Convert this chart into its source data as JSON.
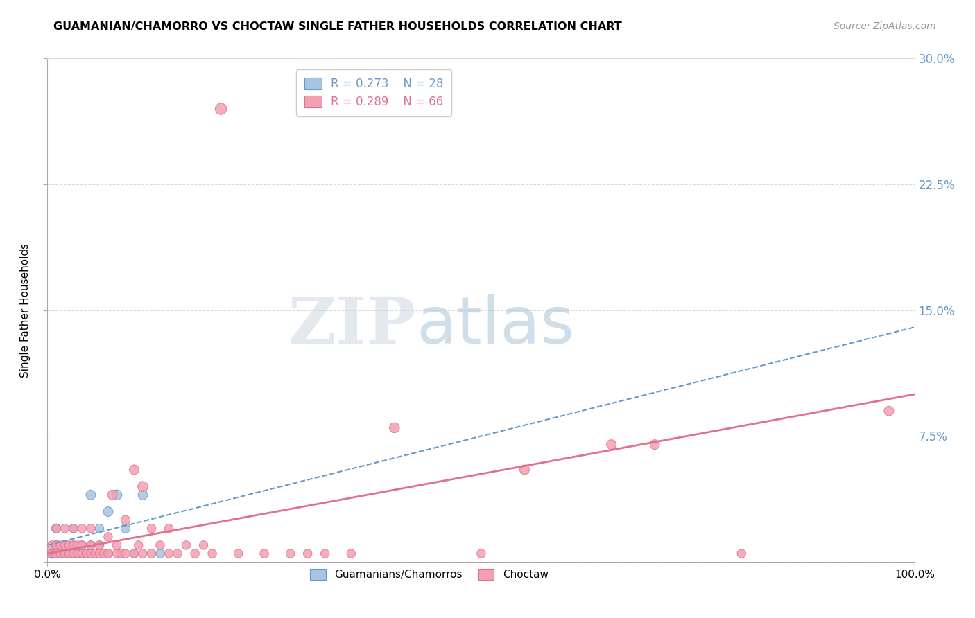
{
  "title": "GUAMANIAN/CHAMORRO VS CHOCTAW SINGLE FATHER HOUSEHOLDS CORRELATION CHART",
  "source": "Source: ZipAtlas.com",
  "ylabel": "Single Father Households",
  "xlim": [
    0,
    1.0
  ],
  "ylim": [
    0,
    0.3
  ],
  "yticks": [
    0.0,
    0.075,
    0.15,
    0.225,
    0.3
  ],
  "ytick_labels": [
    "",
    "7.5%",
    "15.0%",
    "22.5%",
    "30.0%"
  ],
  "xtick_labels": [
    "0.0%",
    "100.0%"
  ],
  "legend_r1": "R = 0.273",
  "legend_n1": "N = 28",
  "legend_r2": "R = 0.289",
  "legend_n2": "N = 66",
  "color_blue": "#a8c4e0",
  "color_pink": "#f4a0b0",
  "trendline_blue": "#6699cc",
  "trendline_pink": "#e07090",
  "background": "#ffffff",
  "blue_points_x": [
    0.005,
    0.008,
    0.01,
    0.01,
    0.01,
    0.015,
    0.02,
    0.02,
    0.02,
    0.025,
    0.03,
    0.03,
    0.03,
    0.035,
    0.04,
    0.04,
    0.045,
    0.05,
    0.05,
    0.06,
    0.06,
    0.07,
    0.07,
    0.08,
    0.09,
    0.1,
    0.11,
    0.13
  ],
  "blue_points_y": [
    0.005,
    0.005,
    0.005,
    0.01,
    0.02,
    0.005,
    0.005,
    0.01,
    0.005,
    0.005,
    0.005,
    0.01,
    0.02,
    0.005,
    0.005,
    0.01,
    0.005,
    0.01,
    0.04,
    0.01,
    0.02,
    0.005,
    0.03,
    0.04,
    0.02,
    0.005,
    0.04,
    0.005
  ],
  "blue_sizes": [
    100,
    80,
    90,
    90,
    90,
    80,
    80,
    80,
    80,
    80,
    80,
    80,
    80,
    80,
    80,
    80,
    80,
    80,
    100,
    80,
    80,
    80,
    100,
    110,
    90,
    80,
    100,
    80
  ],
  "pink_points_x": [
    0.005,
    0.005,
    0.008,
    0.01,
    0.01,
    0.01,
    0.015,
    0.015,
    0.02,
    0.02,
    0.02,
    0.025,
    0.025,
    0.03,
    0.03,
    0.03,
    0.035,
    0.035,
    0.04,
    0.04,
    0.04,
    0.045,
    0.05,
    0.05,
    0.05,
    0.055,
    0.06,
    0.06,
    0.065,
    0.07,
    0.07,
    0.075,
    0.08,
    0.08,
    0.085,
    0.09,
    0.09,
    0.1,
    0.1,
    0.105,
    0.11,
    0.11,
    0.12,
    0.12,
    0.13,
    0.14,
    0.14,
    0.15,
    0.16,
    0.17,
    0.18,
    0.19,
    0.2,
    0.22,
    0.25,
    0.28,
    0.3,
    0.32,
    0.35,
    0.4,
    0.5,
    0.55,
    0.65,
    0.7,
    0.8,
    0.97
  ],
  "pink_points_y": [
    0.005,
    0.01,
    0.005,
    0.005,
    0.01,
    0.02,
    0.005,
    0.01,
    0.005,
    0.01,
    0.02,
    0.005,
    0.01,
    0.005,
    0.01,
    0.02,
    0.005,
    0.01,
    0.005,
    0.01,
    0.02,
    0.005,
    0.005,
    0.01,
    0.02,
    0.005,
    0.005,
    0.01,
    0.005,
    0.005,
    0.015,
    0.04,
    0.005,
    0.01,
    0.005,
    0.005,
    0.025,
    0.005,
    0.055,
    0.01,
    0.005,
    0.045,
    0.005,
    0.02,
    0.01,
    0.005,
    0.02,
    0.005,
    0.01,
    0.005,
    0.01,
    0.005,
    0.27,
    0.005,
    0.005,
    0.005,
    0.005,
    0.005,
    0.005,
    0.08,
    0.005,
    0.055,
    0.07,
    0.07,
    0.005,
    0.09
  ],
  "pink_sizes": [
    80,
    80,
    80,
    80,
    80,
    80,
    80,
    80,
    80,
    80,
    80,
    80,
    80,
    80,
    80,
    80,
    80,
    80,
    80,
    80,
    80,
    80,
    80,
    80,
    80,
    80,
    80,
    80,
    80,
    80,
    80,
    100,
    80,
    80,
    80,
    80,
    90,
    80,
    100,
    80,
    80,
    110,
    80,
    80,
    80,
    80,
    80,
    80,
    80,
    80,
    80,
    80,
    140,
    80,
    80,
    80,
    80,
    80,
    80,
    110,
    80,
    100,
    100,
    100,
    80,
    100
  ],
  "trendline_blue_start_y": 0.01,
  "trendline_blue_end_y": 0.14,
  "trendline_pink_start_y": 0.005,
  "trendline_pink_end_y": 0.1
}
